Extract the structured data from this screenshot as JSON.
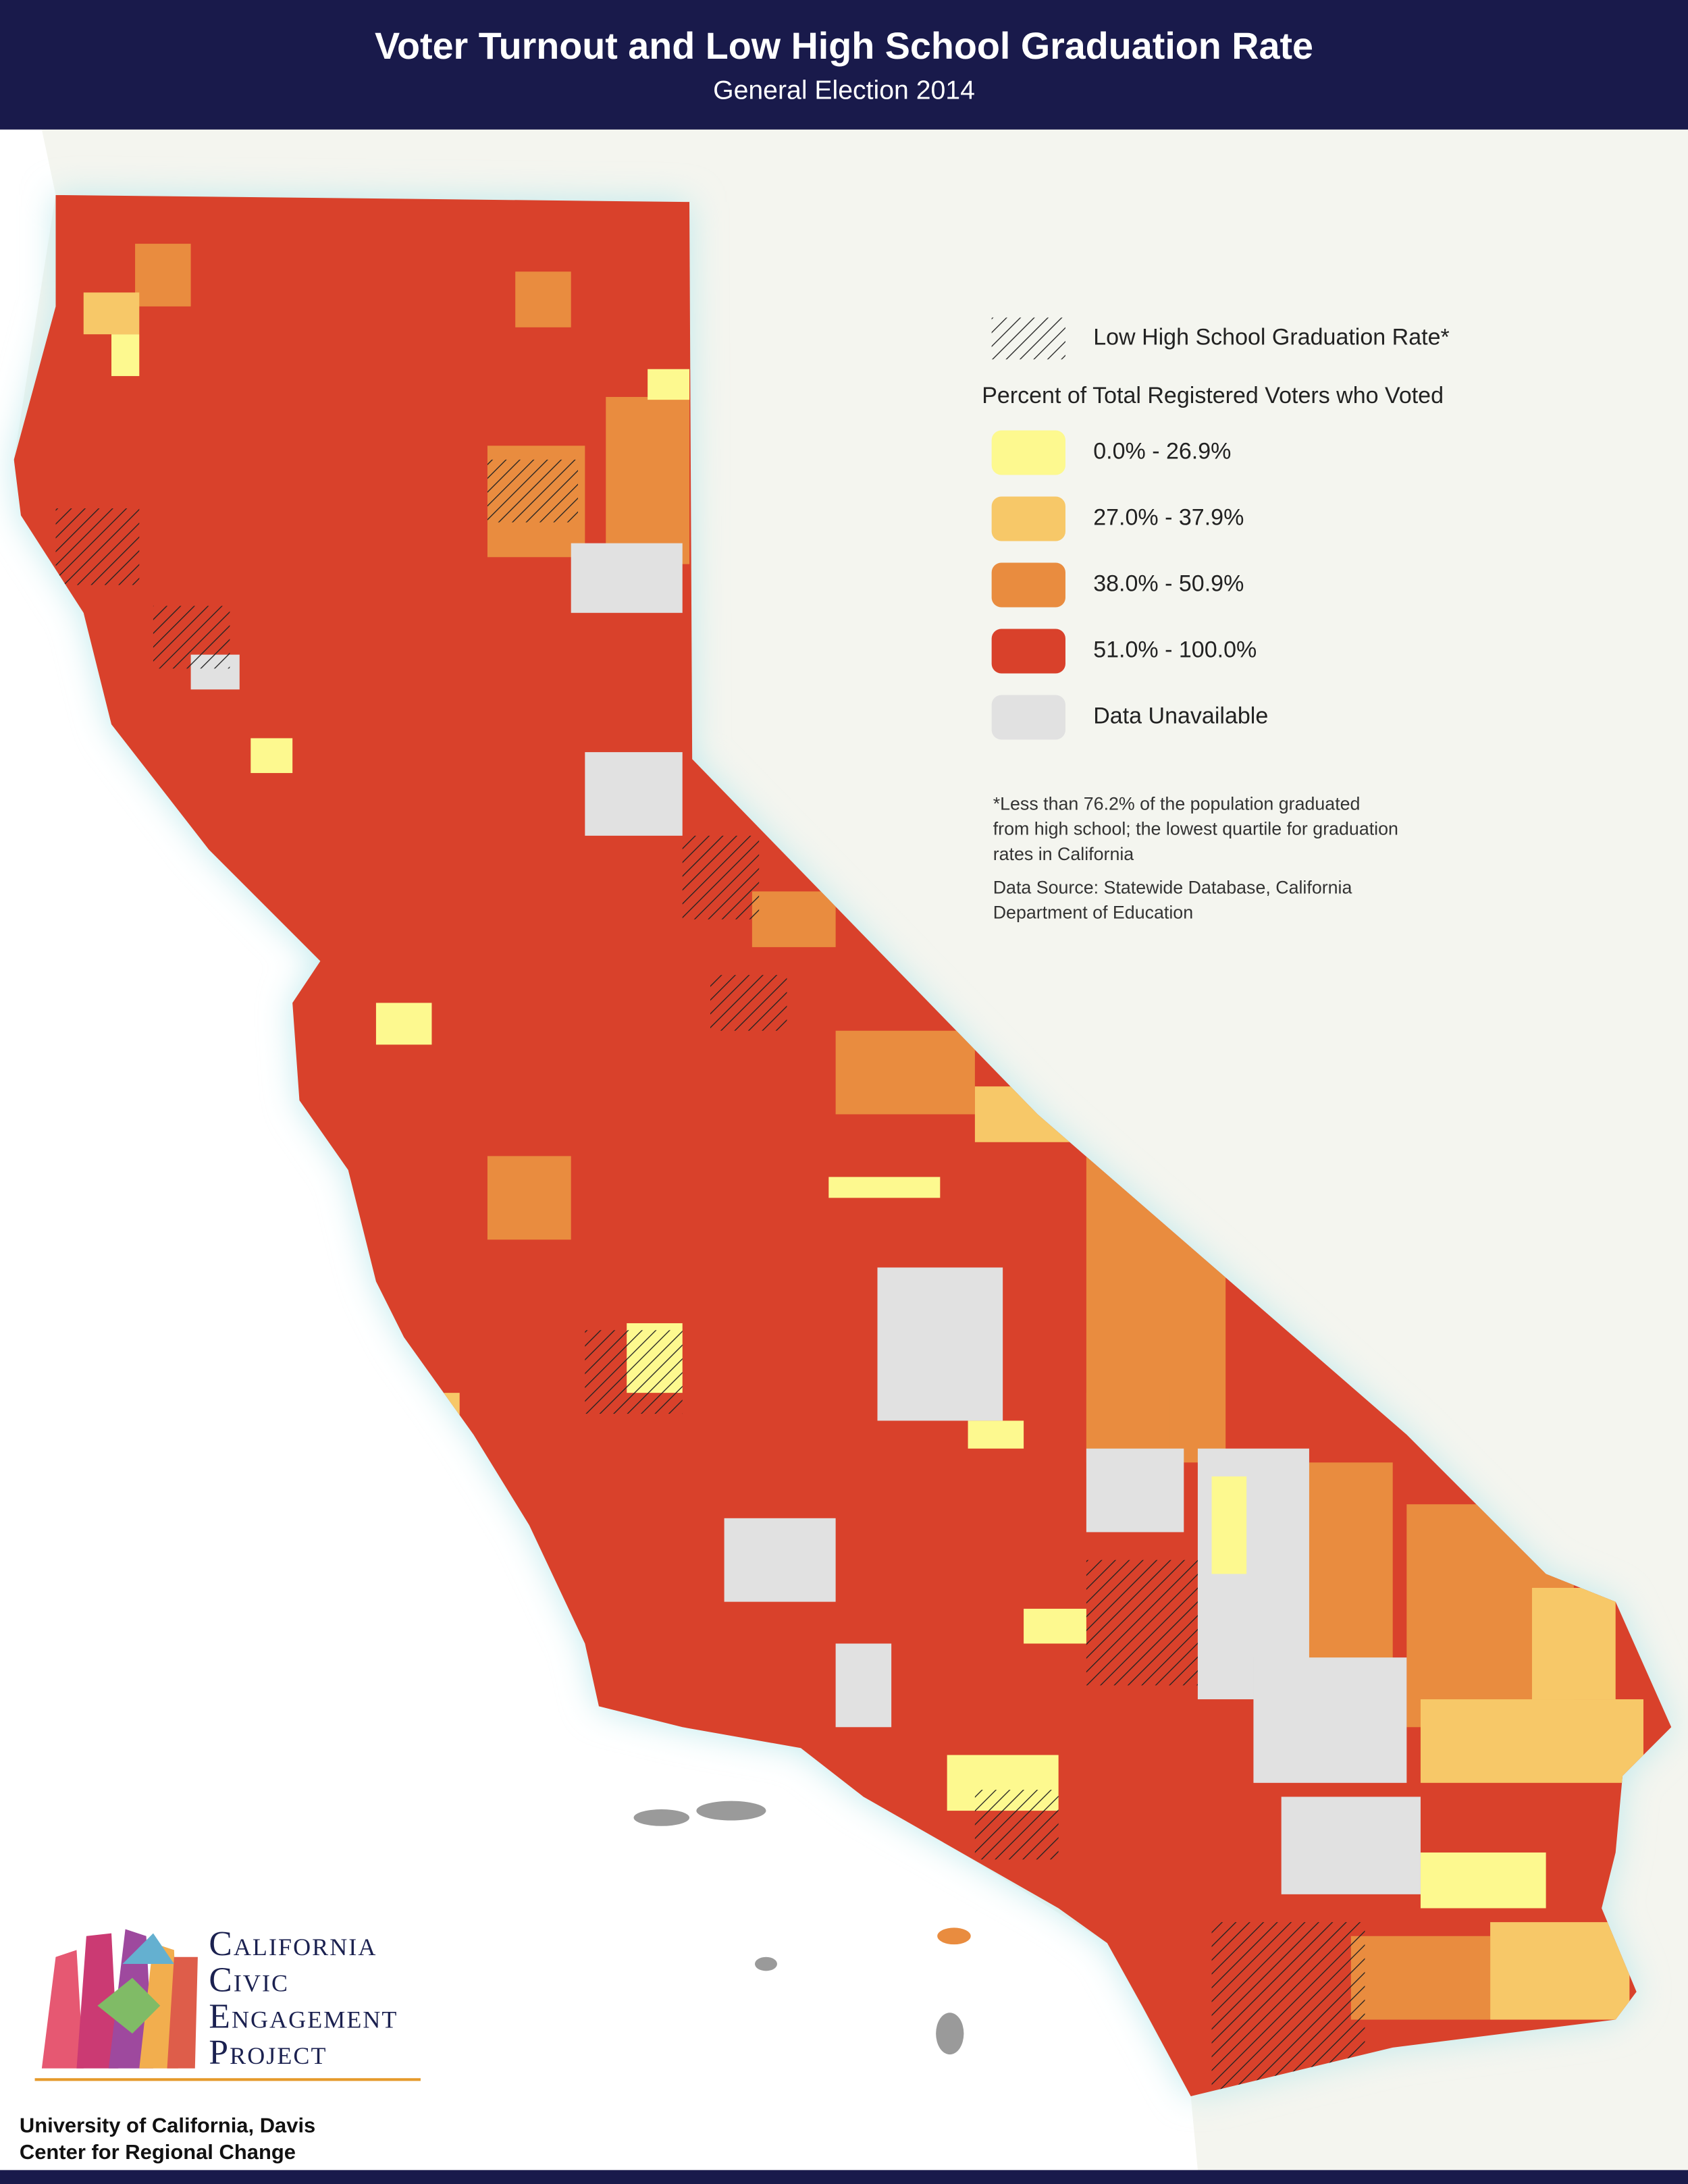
{
  "header": {
    "title": "Voter Turnout and Low High School Graduation Rate",
    "subtitle": "General Election 2014"
  },
  "legend": {
    "hatch_label": "Low High School Graduation Rate*",
    "title": "Percent of Total Registered Voters who Voted",
    "items": [
      {
        "label": "0.0% - 26.9%",
        "color": "#fdf98f"
      },
      {
        "label": "27.0% - 37.9%",
        "color": "#f7c868"
      },
      {
        "label": "38.0% - 50.9%",
        "color": "#e98c3f"
      },
      {
        "label": "51.0% - 100.0%",
        "color": "#d9412b"
      },
      {
        "label": "Data Unavailable",
        "color": "#e1e1e1"
      }
    ]
  },
  "notes": {
    "footnote": [
      "*Less than 76.2% of the population graduated",
      "from high school; the lowest quartile for graduation",
      "rates in California"
    ],
    "source": [
      "Data Source: Statewide Database, California",
      "Department of Education"
    ]
  },
  "logo": {
    "lines": [
      "California",
      "Civic",
      "Engagement",
      "Project"
    ]
  },
  "footer": {
    "lines": [
      "University of California, Davis",
      "Center for Regional Change"
    ]
  }
}
